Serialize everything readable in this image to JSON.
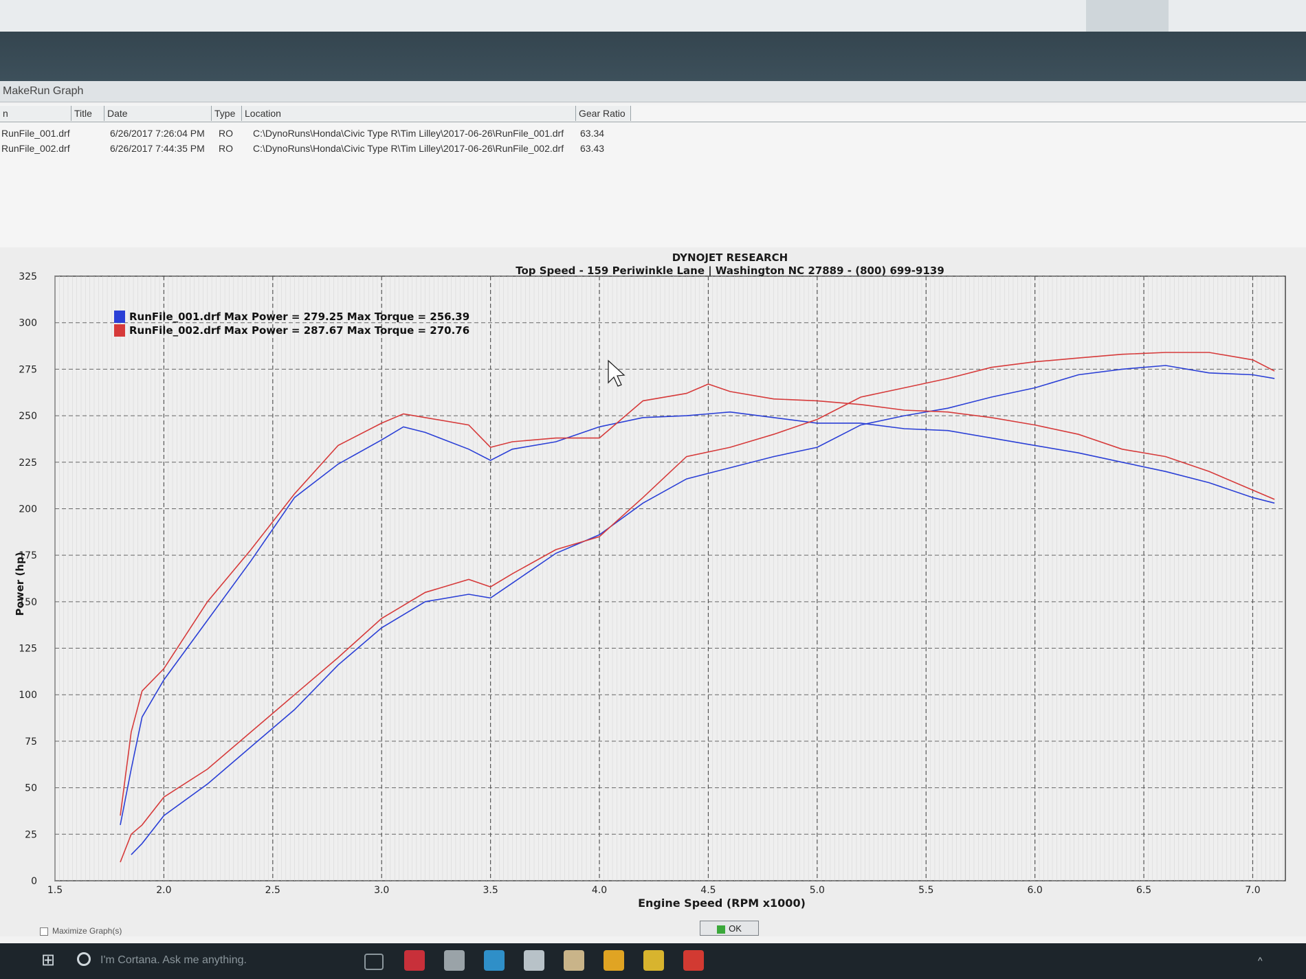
{
  "window": {
    "title": "MakeRun Graph",
    "columns": [
      "n",
      "Title",
      "Date",
      "Type",
      "Location",
      "Gear Ratio"
    ],
    "rows": [
      {
        "file": "RunFile_001.drf",
        "date": "6/26/2017 7:26:04 PM",
        "type": "RO",
        "location": "C:\\DynoRuns\\Honda\\Civic Type R\\Tim Lilley\\2017-06-26\\RunFile_001.drf",
        "gear_ratio": "63.34"
      },
      {
        "file": "RunFile_002.drf",
        "date": "6/26/2017 7:44:35 PM",
        "type": "RO",
        "location": "C:\\DynoRuns\\Honda\\Civic Type R\\Tim Lilley\\2017-06-26\\RunFile_002.drf",
        "gear_ratio": "63.43"
      }
    ],
    "maximize_label": "Maximize Graph(s)",
    "ok_label": "OK"
  },
  "taskbar": {
    "search_placeholder": "I'm Cortana. Ask me anything.",
    "apps": [
      "task-view",
      "app-red",
      "app-usb",
      "app-browser",
      "app-sct",
      "app-folder-1",
      "app-chrome",
      "app-folder-2",
      "app-dyno"
    ],
    "app_colors": [
      "#8c979d",
      "#c8303a",
      "#9aa3a8",
      "#2f8fc8",
      "#b8c2c8",
      "#c9b489",
      "#e0a423",
      "#d8b42e",
      "#d23a32"
    ]
  },
  "chart_data": {
    "type": "line",
    "title": "DYNOJET RESEARCH",
    "subtitle": "Top Speed - 159 Periwinkle Lane | Washington NC 27889 - (800) 699-9139",
    "xlabel": "Engine Speed (RPM x1000)",
    "ylabel": "Power (hp)",
    "xlim": [
      1.5,
      7.15
    ],
    "ylim": [
      0,
      325
    ],
    "xticks": [
      "1.5",
      "2.0",
      "2.5",
      "3.0",
      "3.5",
      "4.0",
      "4.5",
      "5.0",
      "5.5",
      "6.0",
      "6.5",
      "7.0"
    ],
    "yticks": [
      "0",
      "25",
      "50",
      "75",
      "100",
      "125",
      "150",
      "175",
      "200",
      "225",
      "250",
      "275",
      "300",
      "325"
    ],
    "grid": true,
    "legend": [
      {
        "label": "RunFile_001.drf Max Power = 279.25 Max Torque = 256.39",
        "color": "#2a3fd6"
      },
      {
        "label": "RunFile_002.drf Max Power = 287.67 Max Torque = 270.76",
        "color": "#d63a3a"
      }
    ],
    "series": [
      {
        "name": "RunFile_001.drf",
        "color": "#2a3fd6",
        "kind": "power",
        "x": [
          1.85,
          1.9,
          2.0,
          2.2,
          2.4,
          2.6,
          2.8,
          3.0,
          3.2,
          3.4,
          3.5,
          3.6,
          3.8,
          4.0,
          4.2,
          4.4,
          4.6,
          4.8,
          5.0,
          5.2,
          5.4,
          5.6,
          5.8,
          6.0,
          6.2,
          6.4,
          6.6,
          6.8,
          7.0,
          7.1
        ],
        "y": [
          14,
          20,
          35,
          52,
          72,
          92,
          116,
          136,
          150,
          154,
          152,
          160,
          176,
          186,
          203,
          216,
          222,
          228,
          233,
          245,
          250,
          254,
          260,
          265,
          272,
          275,
          277,
          273,
          272,
          270
        ]
      },
      {
        "name": "RunFile_001.drf",
        "color": "#2a3fd6",
        "kind": "torque",
        "x": [
          1.8,
          1.85,
          1.9,
          2.0,
          2.2,
          2.4,
          2.6,
          2.8,
          3.0,
          3.1,
          3.2,
          3.4,
          3.5,
          3.6,
          3.8,
          4.0,
          4.2,
          4.4,
          4.6,
          4.8,
          5.0,
          5.2,
          5.4,
          5.6,
          5.8,
          6.0,
          6.2,
          6.4,
          6.6,
          6.8,
          7.0,
          7.1
        ],
        "y": [
          30,
          60,
          88,
          108,
          140,
          172,
          206,
          224,
          237,
          244,
          241,
          232,
          226,
          232,
          236,
          244,
          249,
          250,
          252,
          249,
          246,
          246,
          243,
          242,
          238,
          234,
          230,
          225,
          220,
          214,
          206,
          203
        ]
      },
      {
        "name": "RunFile_002.drf",
        "color": "#d63a3a",
        "kind": "power",
        "x": [
          1.8,
          1.85,
          1.9,
          2.0,
          2.2,
          2.4,
          2.6,
          2.8,
          3.0,
          3.2,
          3.4,
          3.5,
          3.6,
          3.8,
          4.0,
          4.2,
          4.4,
          4.6,
          4.8,
          5.0,
          5.2,
          5.4,
          5.6,
          5.8,
          6.0,
          6.2,
          6.4,
          6.6,
          6.8,
          7.0,
          7.1
        ],
        "y": [
          10,
          25,
          30,
          45,
          60,
          80,
          100,
          120,
          141,
          155,
          162,
          158,
          165,
          178,
          185,
          206,
          228,
          233,
          240,
          248,
          260,
          265,
          270,
          276,
          279,
          281,
          283,
          284,
          284,
          280,
          274
        ]
      },
      {
        "name": "RunFile_002.drf",
        "color": "#d63a3a",
        "kind": "torque",
        "x": [
          1.8,
          1.85,
          1.9,
          2.0,
          2.2,
          2.4,
          2.6,
          2.8,
          3.0,
          3.1,
          3.2,
          3.4,
          3.5,
          3.6,
          3.8,
          4.0,
          4.2,
          4.4,
          4.5,
          4.6,
          4.8,
          5.0,
          5.2,
          5.4,
          5.6,
          5.8,
          6.0,
          6.2,
          6.4,
          6.6,
          6.8,
          7.0,
          7.1
        ],
        "y": [
          35,
          80,
          102,
          114,
          150,
          178,
          208,
          234,
          246,
          251,
          249,
          245,
          233,
          236,
          238,
          238,
          258,
          262,
          267,
          263,
          259,
          258,
          256,
          253,
          252,
          249,
          245,
          240,
          232,
          228,
          220,
          210,
          205
        ]
      }
    ]
  }
}
